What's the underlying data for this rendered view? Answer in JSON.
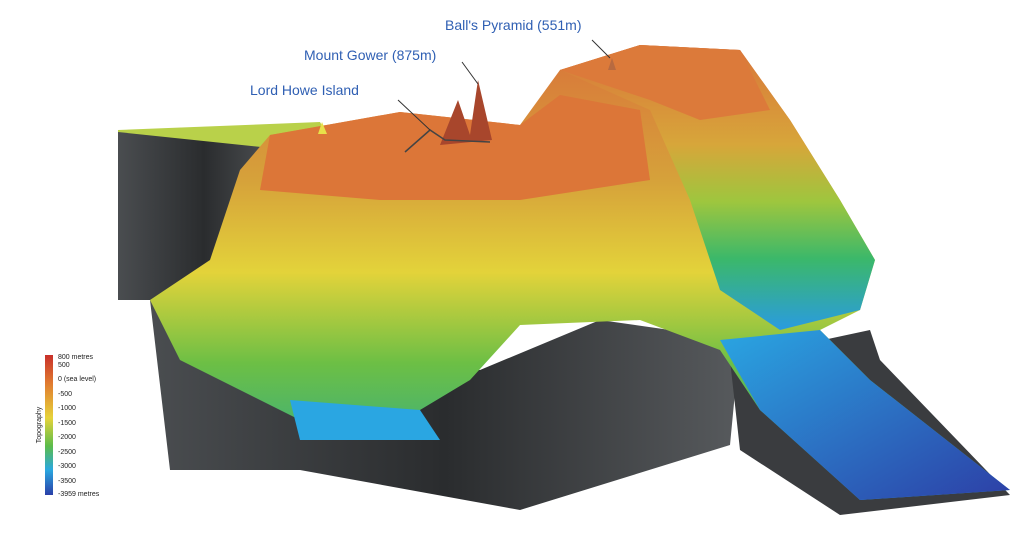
{
  "annotations": {
    "balls_pyramid": "Ball's Pyramid (551m)",
    "mount_gower": "Mount Gower (875m)",
    "lord_howe": "Lord Howe Island"
  },
  "legend": {
    "title": "Topography",
    "labels": [
      "800 metres",
      "500",
      "0 (sea level)",
      "-500",
      "-1000",
      "-1500",
      "-2000",
      "-2500",
      "-3000",
      "-3500",
      "-3959 metres"
    ]
  }
}
